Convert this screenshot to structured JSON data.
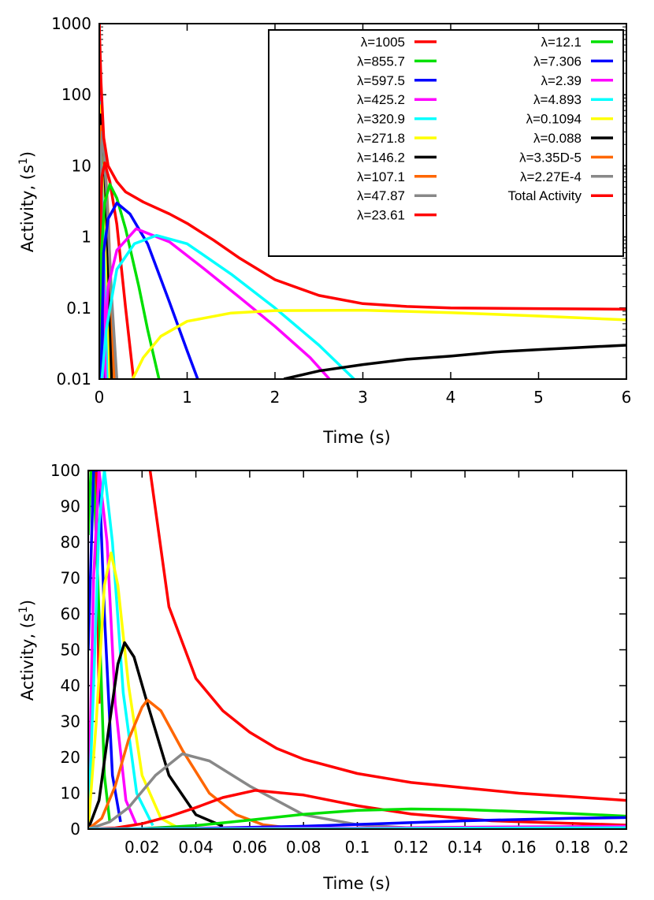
{
  "chart_data": [
    {
      "type": "line",
      "yscale": "log",
      "xlabel": "Time (s)",
      "ylabel_main": "Activity, (s",
      "ylabel_sup": "1",
      "ylabel_end": ")",
      "xlim": [
        0,
        6
      ],
      "ylim": [
        0.01,
        1000
      ],
      "xticks": [
        "0",
        "1",
        "2",
        "3",
        "4",
        "5",
        "6"
      ],
      "yticks": [
        "0.01",
        "0.1",
        "1",
        "10",
        "100",
        "1000"
      ],
      "legend_position": "top-right",
      "series": [
        {
          "name": "λ=1005",
          "color": "#ff0000",
          "x": [
            0,
            0.01,
            0.02,
            0.03,
            0.04,
            0.06
          ],
          "y": [
            1005,
            52,
            2.2,
            0.12,
            0.018,
            0.01
          ]
        },
        {
          "name": "λ=855.7",
          "color": "#00e000",
          "x": [
            0,
            0.01,
            0.02,
            0.03,
            0.04,
            0.05
          ],
          "y": [
            300,
            95,
            7,
            0.35,
            0.03,
            0.01
          ]
        },
        {
          "name": "λ=597.5",
          "color": "#0000ff",
          "x": [
            0,
            0.01,
            0.02,
            0.04,
            0.06
          ],
          "y": [
            200,
            98,
            16,
            0.3,
            0.01
          ]
        },
        {
          "name": "λ=425.2",
          "color": "#ff00ff",
          "x": [
            0.005,
            0.01,
            0.02,
            0.04,
            0.06,
            0.08
          ],
          "y": [
            60,
            95,
            35,
            3.5,
            0.2,
            0.01
          ]
        },
        {
          "name": "λ=320.9",
          "color": "#00ffff",
          "x": [
            0.005,
            0.01,
            0.03,
            0.05,
            0.08,
            0.1
          ],
          "y": [
            20,
            78,
            40,
            6,
            0.3,
            0.01
          ]
        },
        {
          "name": "λ=271.8",
          "color": "#ffff00",
          "x": [
            0.005,
            0.01,
            0.03,
            0.06,
            0.09,
            0.12
          ],
          "y": [
            10,
            70,
            55,
            6,
            0.3,
            0.01
          ]
        },
        {
          "name": "λ=146.2",
          "color": "#000000",
          "x": [
            0.005,
            0.014,
            0.04,
            0.07,
            0.1,
            0.14
          ],
          "y": [
            6,
            52,
            30,
            5,
            0.5,
            0.01
          ]
        },
        {
          "name": "λ=107.1",
          "color": "#ff6600",
          "x": [
            0.005,
            0.022,
            0.05,
            0.1,
            0.14,
            0.17
          ],
          "y": [
            3,
            36,
            25,
            2,
            0.1,
            0.01
          ]
        },
        {
          "name": "λ=47.87",
          "color": "#888888",
          "x": [
            0,
            0.005,
            0.02,
            0.036,
            0.08,
            0.14,
            0.2
          ],
          "y": [
            0.01,
            2,
            15,
            30,
            5,
            0.15,
            0.01
          ]
        },
        {
          "name": "λ=23.61",
          "color": "#ff0000",
          "x": [
            0,
            0.01,
            0.03,
            0.062,
            0.12,
            0.2,
            0.3,
            0.39
          ],
          "y": [
            0.01,
            1,
            7,
            11,
            6,
            1.5,
            0.1,
            0.01
          ]
        },
        {
          "name": "λ=12.1",
          "color": "#00e000",
          "x": [
            0,
            0.02,
            0.06,
            0.12,
            0.2,
            0.3,
            0.45,
            0.55,
            0.68
          ],
          "y": [
            0.01,
            0.5,
            3,
            5.5,
            3.5,
            1.3,
            0.2,
            0.05,
            0.01
          ]
        },
        {
          "name": "λ=7.306",
          "color": "#0000ff",
          "x": [
            0.02,
            0.05,
            0.1,
            0.2,
            0.35,
            0.55,
            0.8,
            1.0,
            1.12
          ],
          "y": [
            0.01,
            0.6,
            1.8,
            3.0,
            2.1,
            0.8,
            0.12,
            0.025,
            0.01
          ]
        },
        {
          "name": "λ=2.39",
          "color": "#ff00ff",
          "x": [
            0.04,
            0.1,
            0.2,
            0.42,
            0.8,
            1.2,
            1.6,
            2.0,
            2.4,
            2.62
          ],
          "y": [
            0.01,
            0.2,
            0.65,
            1.3,
            0.85,
            0.35,
            0.14,
            0.055,
            0.02,
            0.01
          ]
        },
        {
          "name": "λ=4.893",
          "color": "#00ffff",
          "x": [
            0.03,
            0.08,
            0.2,
            0.4,
            0.65,
            1.0,
            1.5,
            2.0,
            2.5,
            2.9
          ],
          "y": [
            0.01,
            0.05,
            0.35,
            0.8,
            1.05,
            0.8,
            0.3,
            0.1,
            0.03,
            0.01
          ]
        },
        {
          "name": "λ=0.1094",
          "color": "#ffff00",
          "x": [
            0.38,
            0.5,
            0.7,
            1.0,
            1.5,
            2.0,
            3.0,
            4.0,
            5.0,
            6.0
          ],
          "y": [
            0.01,
            0.02,
            0.04,
            0.065,
            0.085,
            0.092,
            0.093,
            0.086,
            0.077,
            0.068
          ]
        },
        {
          "name": "λ=0.088",
          "color": "#000000",
          "x": [
            2.1,
            2.5,
            3.0,
            3.5,
            4.0,
            4.5,
            5.0,
            5.5,
            6.0
          ],
          "y": [
            0.01,
            0.013,
            0.016,
            0.019,
            0.021,
            0.024,
            0.026,
            0.028,
            0.03
          ]
        },
        {
          "name": "λ=3.35D-5",
          "color": "#ff6600",
          "x": [],
          "y": []
        },
        {
          "name": "λ=2.27E-4",
          "color": "#888888",
          "x": [],
          "y": []
        },
        {
          "name": "Total Activity",
          "color": "#ff0000",
          "x": [
            0,
            0.02,
            0.05,
            0.1,
            0.2,
            0.3,
            0.5,
            0.8,
            1.0,
            1.3,
            1.6,
            2.0,
            2.5,
            3.0,
            3.5,
            4.0,
            5.0,
            6.0
          ],
          "y": [
            1000,
            150,
            25,
            10,
            6,
            4.3,
            3.1,
            2.1,
            1.55,
            0.9,
            0.5,
            0.25,
            0.15,
            0.115,
            0.105,
            0.1,
            0.098,
            0.096
          ]
        }
      ]
    },
    {
      "type": "line",
      "xlabel": "Time (s)",
      "ylabel_main": "Activity, (s",
      "ylabel_sup": "1",
      "ylabel_end": ")",
      "xlim": [
        0,
        0.2
      ],
      "ylim": [
        0,
        100
      ],
      "xticks": [
        "0.02",
        "0.04",
        "0.06",
        "0.08",
        "0.1",
        "0.12",
        "0.14",
        "0.16",
        "0.18",
        "0.2"
      ],
      "yticks": [
        "0",
        "10",
        "20",
        "30",
        "40",
        "50",
        "60",
        "70",
        "80",
        "90",
        "100"
      ],
      "series": [
        {
          "name": "λ=1005",
          "color": "#ff0000",
          "x": [
            0,
            0.0015,
            0.003,
            0.004
          ],
          "y": [
            100,
            100,
            100,
            35
          ]
        },
        {
          "name": "λ=855.7",
          "color": "#00e000",
          "x": [
            0,
            0.001,
            0.002,
            0.004,
            0.006,
            0.008
          ],
          "y": [
            82,
            100,
            100,
            60,
            15,
            2
          ]
        },
        {
          "name": "λ=597.5",
          "color": "#0000ff",
          "x": [
            0,
            0.002,
            0.004,
            0.006,
            0.009,
            0.012
          ],
          "y": [
            50,
            100,
            100,
            60,
            15,
            2
          ]
        },
        {
          "name": "λ=425.2",
          "color": "#ff00ff",
          "x": [
            0,
            0.002,
            0.004,
            0.007,
            0.01,
            0.014,
            0.018
          ],
          "y": [
            0,
            70,
            100,
            80,
            35,
            8,
            1
          ]
        },
        {
          "name": "λ=320.9",
          "color": "#00ffff",
          "x": [
            0,
            0.002,
            0.004,
            0.006,
            0.009,
            0.013,
            0.018,
            0.024
          ],
          "y": [
            0,
            40,
            85,
            100,
            80,
            38,
            10,
            1
          ]
        },
        {
          "name": "λ=271.8",
          "color": "#ffff00",
          "x": [
            0,
            0.003,
            0.006,
            0.0085,
            0.011,
            0.015,
            0.02,
            0.027,
            0.033
          ],
          "y": [
            0,
            30,
            68,
            77,
            68,
            40,
            15,
            3,
            0.5
          ]
        },
        {
          "name": "λ=146.2",
          "color": "#000000",
          "x": [
            0,
            0.004,
            0.008,
            0.011,
            0.0135,
            0.017,
            0.022,
            0.03,
            0.04,
            0.05
          ],
          "y": [
            0,
            8,
            30,
            46,
            52,
            48,
            35,
            15,
            4,
            0.8
          ]
        },
        {
          "name": "λ=107.1",
          "color": "#ff6600",
          "x": [
            0,
            0.005,
            0.01,
            0.015,
            0.02,
            0.022,
            0.027,
            0.035,
            0.045,
            0.055,
            0.065,
            0.075
          ],
          "y": [
            0,
            3,
            12,
            25,
            34,
            36,
            33,
            22,
            10,
            4,
            1.2,
            0.3
          ]
        },
        {
          "name": "λ=47.87",
          "color": "#888888",
          "x": [
            0,
            0.008,
            0.015,
            0.025,
            0.035,
            0.045,
            0.06,
            0.08,
            0.1,
            0.12
          ],
          "y": [
            0,
            2,
            6,
            15,
            21,
            19,
            12,
            4,
            1.2,
            0.3
          ]
        },
        {
          "name": "λ=23.61",
          "color": "#ff0000",
          "x": [
            0,
            0.01,
            0.02,
            0.03,
            0.04,
            0.05,
            0.062,
            0.08,
            0.1,
            0.12,
            0.15,
            0.2
          ],
          "y": [
            0,
            0.3,
            1.5,
            3.5,
            6,
            8.8,
            10.8,
            9.5,
            6.5,
            4.2,
            2.3,
            1.1
          ]
        },
        {
          "name": "λ=12.1",
          "color": "#00e000",
          "x": [
            0,
            0.02,
            0.04,
            0.06,
            0.08,
            0.1,
            0.12,
            0.14,
            0.16,
            0.18,
            0.2
          ],
          "y": [
            0,
            0.1,
            1,
            2.5,
            4.1,
            5.2,
            5.6,
            5.4,
            4.9,
            4.3,
            3.6
          ]
        },
        {
          "name": "λ=7.306",
          "color": "#0000ff",
          "x": [
            0,
            0.04,
            0.08,
            0.1,
            0.14,
            0.18,
            0.2
          ],
          "y": [
            0,
            0.2,
            0.8,
            1.3,
            2.3,
            3.0,
            3.2
          ]
        },
        {
          "name": "λ=2.39",
          "color": "#ff00ff",
          "x": [
            0,
            0.1,
            0.2
          ],
          "y": [
            0,
            0.3,
            0.8
          ]
        },
        {
          "name": "λ=4.893",
          "color": "#00ffff",
          "x": [
            0,
            0.1,
            0.2
          ],
          "y": [
            0,
            0.1,
            0.4
          ]
        },
        {
          "name": "Total Activity",
          "color": "#ff0000",
          "x": [
            0.023,
            0.03,
            0.04,
            0.05,
            0.06,
            0.07,
            0.08,
            0.1,
            0.12,
            0.14,
            0.16,
            0.18,
            0.2
          ],
          "y": [
            100,
            62,
            42,
            33,
            27,
            22.5,
            19.5,
            15.5,
            13,
            11.5,
            10,
            9,
            8
          ]
        }
      ]
    }
  ]
}
